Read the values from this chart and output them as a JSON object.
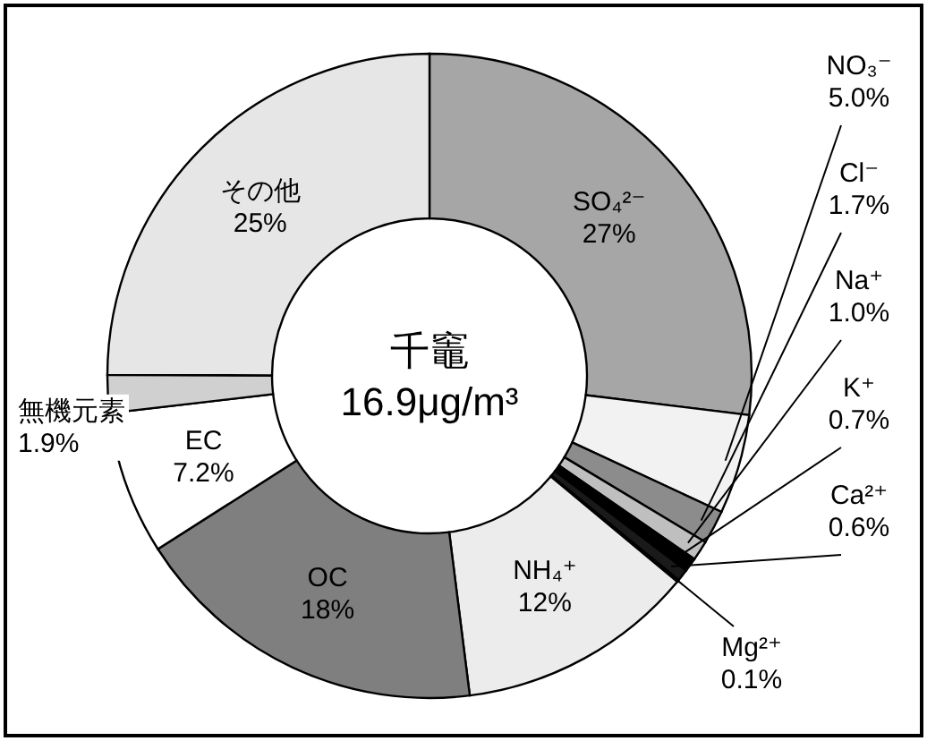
{
  "chart_data": {
    "type": "donut",
    "title": "千竈",
    "subtitle": "16.9μg/m³",
    "categories": [
      "SO₄²⁻",
      "NO₃⁻",
      "Cl⁻",
      "Na⁺",
      "K⁺",
      "Ca²⁺",
      "Mg²⁺",
      "NH₄⁺",
      "OC",
      "EC",
      "無機元素",
      "その他"
    ],
    "values": [
      27,
      5.0,
      1.7,
      1.0,
      0.7,
      0.6,
      0.1,
      12,
      18,
      7.2,
      1.9,
      25
    ],
    "value_labels": [
      "27%",
      "5.0%",
      "1.7%",
      "1.0%",
      "0.7%",
      "0.6%",
      "0.1%",
      "12%",
      "18%",
      "7.2%",
      "1.9%",
      "25%"
    ],
    "colors": [
      "#a6a6a6",
      "#f2f2f2",
      "#8c8c8c",
      "#bfbfbf",
      "#000000",
      "#1a1a1a",
      "#000000",
      "#ececec",
      "#7f7f7f",
      "#ffffff",
      "#d0d0d0",
      "#e6e6e6"
    ]
  }
}
